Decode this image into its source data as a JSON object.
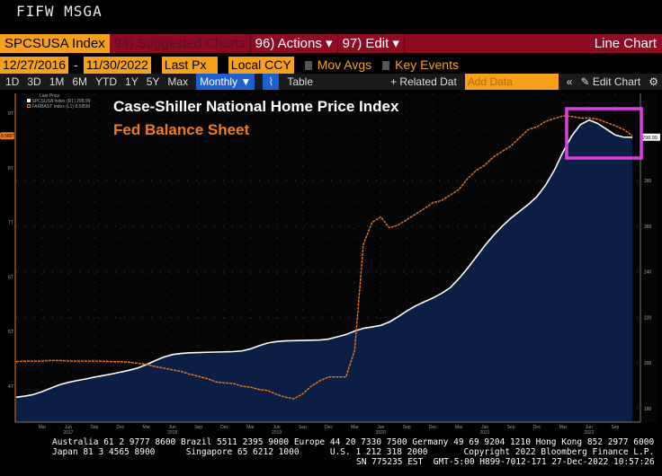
{
  "header": {
    "command": "FIFW MSGA"
  },
  "toolbar": {
    "ticker": "SPCSUSA Index",
    "suggested": "94) Suggested Charts",
    "actions": "96) Actions ▾",
    "edit": "97) Edit ▾",
    "chart_type": "Line Chart"
  },
  "controls": {
    "start_date": "12/27/2016",
    "dash": "-",
    "end_date": "11/30/2022",
    "field": "Last Px",
    "currency": "Local CCY",
    "mov_avgs": "Mov Avgs",
    "key_events": "Key Events"
  },
  "periods": [
    "1D",
    "3D",
    "1M",
    "6M",
    "YTD",
    "1Y",
    "5Y",
    "Max"
  ],
  "period_bar": {
    "frequency": "Monthly ▼",
    "table": "Table",
    "related": "+ Related Dat",
    "add_data_placeholder": "Add Data",
    "edit_chart": "Edit Chart"
  },
  "legend": {
    "header": "Last Price",
    "s1": "SPCSUSA Index (R1) 298.99",
    "s2": "FARBAST Index (L1) 8.585M"
  },
  "footer": {
    "line1": "Australia 61 2 9777 8600 Brazil 5511 2395 9000 Europe 44 20 7330 7500 Germany 49 69 9204 1210 Hong Kong 852 2977 6000",
    "line2": "Japan 81 3 4565 8900      Singapore 65 6212 1000      U.S. 1 212 318 2000       Copyright 2022 Bloomberg Finance L.P.",
    "line3": "SN 775235 EST  GMT-5:00 H899-7012-171 27-Dec-2022 10:57:26"
  },
  "colors": {
    "home": "#ffffff",
    "fed": "#f07a1c",
    "area": "#0b1f45",
    "highlight": "#e040e0"
  },
  "chart_data": {
    "type": "line",
    "title": "Case-Shiller National Home Price Index",
    "subtitle": "Fed Balance Sheet",
    "x_start": "2016-12",
    "frequency": "monthly",
    "x_ticks": [
      {
        "label": "Mar",
        "m": 3
      },
      {
        "label": "Jun",
        "year": "2017",
        "m": 6
      },
      {
        "label": "Sep",
        "m": 9
      },
      {
        "label": "Dec",
        "m": 12
      },
      {
        "label": "Mar",
        "m": 15
      },
      {
        "label": "Jun",
        "year": "2018",
        "m": 18
      },
      {
        "label": "Sep",
        "m": 21
      },
      {
        "label": "Dec",
        "m": 24
      },
      {
        "label": "Mar",
        "m": 27
      },
      {
        "label": "Jun",
        "year": "2019",
        "m": 30
      },
      {
        "label": "Sep",
        "m": 33
      },
      {
        "label": "Dec",
        "m": 36
      },
      {
        "label": "Mar",
        "m": 39
      },
      {
        "label": "Jun",
        "year": "2020",
        "m": 42
      },
      {
        "label": "Sep",
        "m": 45
      },
      {
        "label": "Dec",
        "m": 48
      },
      {
        "label": "Mar",
        "m": 51
      },
      {
        "label": "Jun",
        "year": "2021",
        "m": 54
      },
      {
        "label": "Sep",
        "m": 57
      },
      {
        "label": "Dec",
        "m": 60
      },
      {
        "label": "Mar",
        "m": 63
      },
      {
        "label": "Jun",
        "year": "2022",
        "m": 66
      },
      {
        "label": "Sep",
        "m": 69
      }
    ],
    "right_axis": {
      "ticks": [
        180,
        200,
        220,
        240,
        260,
        280
      ],
      "last_label": "298.99"
    },
    "left_axis": {
      "ticks": [
        {
          "v": 4,
          "label": "4T"
        },
        {
          "v": 5,
          "label": "5T"
        },
        {
          "v": 6,
          "label": "6T"
        },
        {
          "v": 7,
          "label": "7T"
        },
        {
          "v": 8,
          "label": "8T"
        },
        {
          "v": 9,
          "label": "9T"
        }
      ],
      "last_label": "8.585T"
    },
    "series": [
      {
        "name": "SPCSUSA Index",
        "axis": "right",
        "values": [
          185.0,
          185.5,
          186.2,
          187.5,
          189.0,
          190.5,
          191.5,
          192.3,
          193.0,
          193.8,
          194.5,
          195.2,
          196.0,
          196.8,
          197.8,
          199.3,
          201.0,
          202.6,
          203.7,
          204.2,
          204.5,
          204.6,
          204.7,
          204.8,
          204.9,
          205.0,
          205.3,
          206.2,
          207.6,
          208.8,
          209.4,
          209.7,
          209.8,
          209.9,
          210.0,
          210.1,
          210.5,
          211.5,
          212.5,
          214.0,
          215.2,
          215.8,
          216.5,
          218.0,
          220.3,
          222.8,
          225.0,
          226.8,
          228.5,
          230.5,
          233.0,
          237.0,
          241.5,
          246.5,
          251.5,
          256.0,
          260.0,
          263.5,
          266.5,
          269.5,
          273.0,
          278.0,
          284.5,
          292.5,
          299.5,
          304.5,
          306.5,
          305.0,
          302.5,
          300.0,
          299.0,
          298.99
        ]
      },
      {
        "name": "FARBAST Index",
        "axis": "left",
        "unit": "trillions",
        "values": [
          4.45,
          4.46,
          4.46,
          4.46,
          4.47,
          4.47,
          4.46,
          4.46,
          4.46,
          4.46,
          4.46,
          4.45,
          4.45,
          4.44,
          4.42,
          4.4,
          4.36,
          4.33,
          4.3,
          4.27,
          4.22,
          4.18,
          4.14,
          4.08,
          4.06,
          4.05,
          4.0,
          3.98,
          3.94,
          3.92,
          3.85,
          3.8,
          3.77,
          3.86,
          4.0,
          4.1,
          4.17,
          4.17,
          4.17,
          4.66,
          6.6,
          7.0,
          7.1,
          6.9,
          6.95,
          7.05,
          7.15,
          7.25,
          7.36,
          7.4,
          7.5,
          7.6,
          7.8,
          7.95,
          8.05,
          8.2,
          8.3,
          8.4,
          8.55,
          8.7,
          8.75,
          8.85,
          8.9,
          8.95,
          8.94,
          8.91,
          8.91,
          8.89,
          8.83,
          8.77,
          8.7,
          8.585
        ]
      }
    ]
  }
}
